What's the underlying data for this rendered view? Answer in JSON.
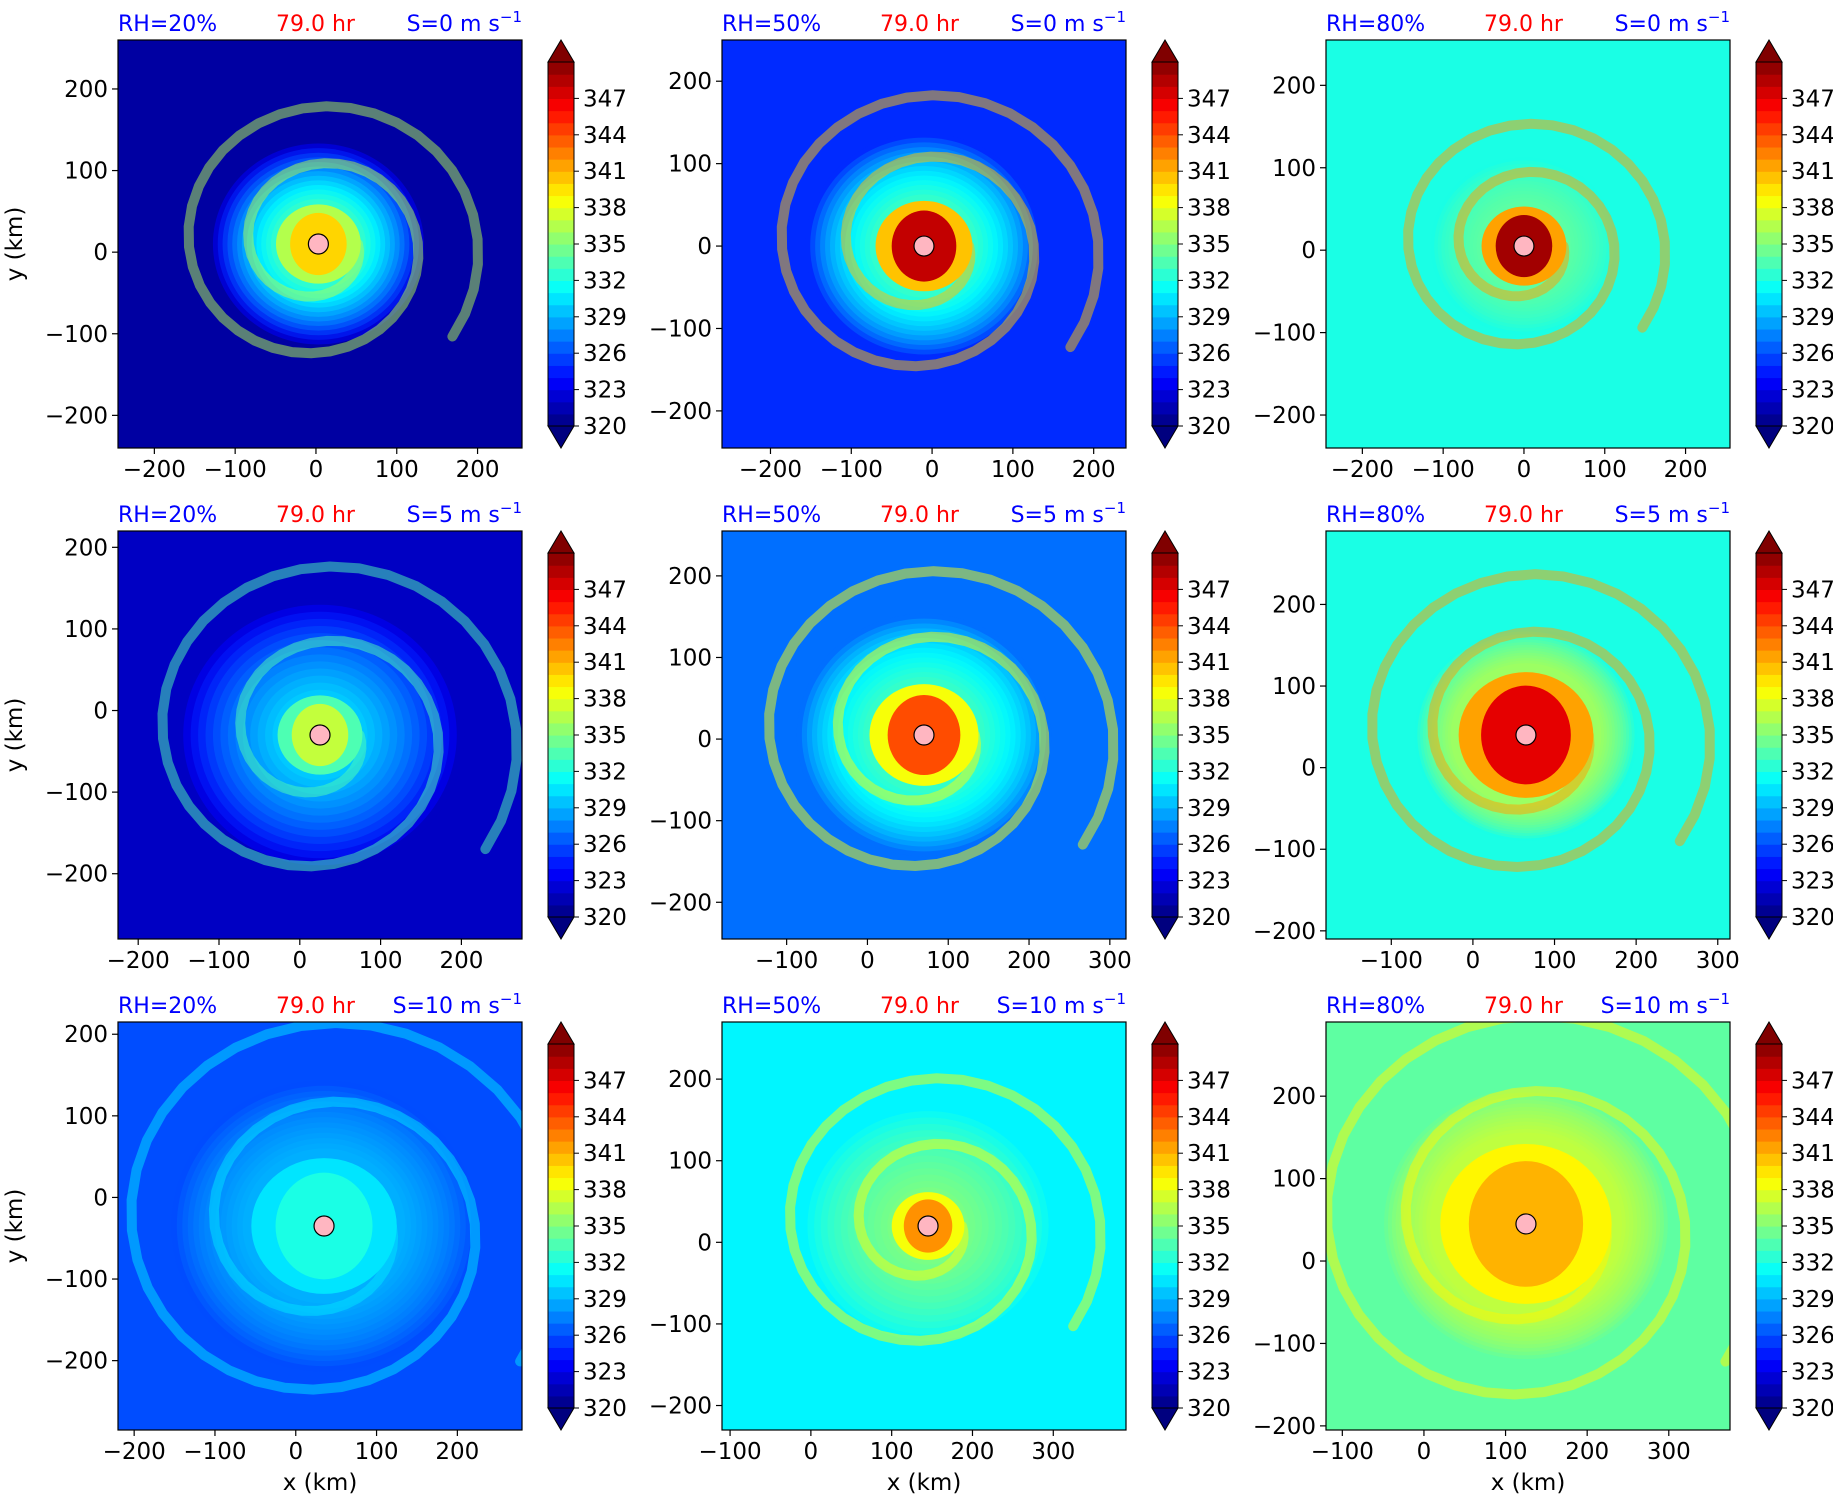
{
  "figure": {
    "colorbar": {
      "tick_labels": [
        "347",
        "344",
        "341",
        "338",
        "335",
        "332",
        "329",
        "326",
        "323",
        "320"
      ],
      "tick_values": [
        347,
        344,
        341,
        338,
        335,
        332,
        329,
        326,
        323,
        320
      ],
      "range": [
        320,
        350
      ],
      "extend": "both",
      "colormap": "jet"
    },
    "time_label": "79.0 hr",
    "time_color": "#ff0000",
    "label_color": "#0000ff"
  },
  "chart_data": [
    {
      "type": "heatmap",
      "rh_label": "RH=20%",
      "time_label": "79.0 hr",
      "shear_label": "S=0 m s",
      "shear_exp": "−1",
      "ylabel": "y (km)",
      "xlabel": "",
      "xticks": [
        -200,
        -100,
        0,
        100,
        200
      ],
      "xtick_labels": [
        "−200",
        "−100",
        "0",
        "100",
        "200"
      ],
      "yticks": [
        200,
        100,
        0,
        -100,
        -200
      ],
      "ytick_labels": [
        "200",
        "100",
        "0",
        "−100",
        "−200"
      ],
      "xlim": [
        -245,
        255
      ],
      "ylim": [
        -240,
        260
      ],
      "center": [
        3,
        10
      ],
      "bg_value": 321,
      "core_value": 340,
      "core_radius_km": 35,
      "ring_value": 333,
      "ring_radius_km": 130
    },
    {
      "type": "heatmap",
      "rh_label": "RH=50%",
      "time_label": "79.0 hr",
      "shear_label": "S=0 m s",
      "shear_exp": "−1",
      "ylabel": "",
      "xlabel": "",
      "xticks": [
        -200,
        -100,
        0,
        100,
        200
      ],
      "xtick_labels": [
        "−200",
        "−100",
        "0",
        "100",
        "200"
      ],
      "yticks": [
        200,
        100,
        0,
        -100,
        -200
      ],
      "ytick_labels": [
        "200",
        "100",
        "0",
        "−100",
        "−200"
      ],
      "xlim": [
        -260,
        240
      ],
      "ylim": [
        -245,
        250
      ],
      "center": [
        -10,
        0
      ],
      "bg_value": 325,
      "core_value": 348,
      "core_radius_km": 40,
      "ring_value": 333,
      "ring_radius_km": 140
    },
    {
      "type": "heatmap",
      "rh_label": "RH=80%",
      "time_label": "79.0 hr",
      "shear_label": "S=0 m s",
      "shear_exp": "−1",
      "ylabel": "",
      "xlabel": "",
      "xticks": [
        -200,
        -100,
        0,
        100,
        200
      ],
      "xtick_labels": [
        "−200",
        "−100",
        "0",
        "100",
        "200"
      ],
      "yticks": [
        200,
        100,
        0,
        -100,
        -200
      ],
      "ytick_labels": [
        "200",
        "100",
        "0",
        "−100",
        "−200"
      ],
      "xlim": [
        -245,
        255
      ],
      "ylim": [
        -240,
        255
      ],
      "center": [
        0,
        5
      ],
      "bg_value": 332,
      "core_value": 349,
      "core_radius_km": 35,
      "ring_value": 334,
      "ring_radius_km": 110
    },
    {
      "type": "heatmap",
      "rh_label": "RH=20%",
      "time_label": "79.0 hr",
      "shear_label": "S=5 m s",
      "shear_exp": "−1",
      "ylabel": "y (km)",
      "xlabel": "",
      "xticks": [
        -200,
        -100,
        0,
        100,
        200
      ],
      "xtick_labels": [
        "−200",
        "−100",
        "0",
        "100",
        "200"
      ],
      "yticks": [
        200,
        100,
        0,
        -100,
        -200
      ],
      "ytick_labels": [
        "200",
        "100",
        "0",
        "−100",
        "−200"
      ],
      "xlim": [
        -225,
        275
      ],
      "ylim": [
        -280,
        220
      ],
      "center": [
        25,
        -30
      ],
      "bg_value": 322,
      "core_value": 337,
      "core_radius_km": 35,
      "ring_value": 330,
      "ring_radius_km": 170
    },
    {
      "type": "heatmap",
      "rh_label": "RH=50%",
      "time_label": "79.0 hr",
      "shear_label": "S=5 m s",
      "shear_exp": "−1",
      "ylabel": "",
      "xlabel": "",
      "xticks": [
        -100,
        0,
        100,
        200,
        300
      ],
      "xtick_labels": [
        "−100",
        "0",
        "100",
        "200",
        "300"
      ],
      "yticks": [
        200,
        100,
        0,
        -100,
        -200
      ],
      "ytick_labels": [
        "200",
        "100",
        "0",
        "−100",
        "−200"
      ],
      "xlim": [
        -180,
        320
      ],
      "ylim": [
        -245,
        255
      ],
      "center": [
        70,
        5
      ],
      "bg_value": 327,
      "core_value": 344,
      "core_radius_km": 45,
      "ring_value": 333,
      "ring_radius_km": 150
    },
    {
      "type": "heatmap",
      "rh_label": "RH=80%",
      "time_label": "79.0 hr",
      "shear_label": "S=5 m s",
      "shear_exp": "−1",
      "ylabel": "",
      "xlabel": "",
      "xticks": [
        -100,
        0,
        100,
        200,
        300
      ],
      "xtick_labels": [
        "−100",
        "0",
        "100",
        "200",
        "300"
      ],
      "yticks": [
        200,
        100,
        0,
        -100,
        -200
      ],
      "ytick_labels": [
        "200",
        "100",
        "0",
        "−100",
        "−200"
      ],
      "xlim": [
        -180,
        315
      ],
      "ylim": [
        -210,
        290
      ],
      "center": [
        65,
        40
      ],
      "bg_value": 332,
      "core_value": 347,
      "core_radius_km": 55,
      "ring_value": 336,
      "ring_radius_km": 130
    },
    {
      "type": "heatmap",
      "rh_label": "RH=20%",
      "time_label": "79.0 hr",
      "shear_label": "S=10 m s",
      "shear_exp": "−1",
      "ylabel": "y (km)",
      "xlabel": "x (km)",
      "xticks": [
        -200,
        -100,
        0,
        100,
        200
      ],
      "xtick_labels": [
        "−200",
        "−100",
        "0",
        "100",
        "200"
      ],
      "yticks": [
        200,
        100,
        0,
        -100,
        -200
      ],
      "ytick_labels": [
        "200",
        "100",
        "0",
        "−100",
        "−200"
      ],
      "xlim": [
        -220,
        280
      ],
      "ylim": [
        -285,
        215
      ],
      "center": [
        35,
        -35
      ],
      "bg_value": 326,
      "core_value": 332,
      "core_radius_km": 60,
      "ring_value": 329,
      "ring_radius_km": 180
    },
    {
      "type": "heatmap",
      "rh_label": "RH=50%",
      "time_label": "79.0 hr",
      "shear_label": "S=10 m s",
      "shear_exp": "−1",
      "ylabel": "",
      "xlabel": "x (km)",
      "xticks": [
        -100,
        0,
        100,
        200,
        300
      ],
      "xtick_labels": [
        "−100",
        "0",
        "100",
        "200",
        "300"
      ],
      "yticks": [
        200,
        100,
        0,
        -100,
        -200
      ],
      "ytick_labels": [
        "200",
        "100",
        "0",
        "−100",
        "−200"
      ],
      "xlim": [
        -110,
        390
      ],
      "ylim": [
        -230,
        270
      ],
      "center": [
        145,
        20
      ],
      "bg_value": 331,
      "core_value": 342,
      "core_radius_km": 30,
      "ring_value": 335,
      "ring_radius_km": 150
    },
    {
      "type": "heatmap",
      "rh_label": "RH=80%",
      "time_label": "79.0 hr",
      "shear_label": "S=10 m s",
      "shear_exp": "−1",
      "ylabel": "",
      "xlabel": "x (km)",
      "xticks": [
        -100,
        0,
        100,
        200,
        300
      ],
      "xtick_labels": [
        "−100",
        "0",
        "100",
        "200",
        "300"
      ],
      "yticks": [
        200,
        100,
        0,
        -100,
        -200
      ],
      "ytick_labels": [
        "200",
        "100",
        "0",
        "−100",
        "−200"
      ],
      "xlim": [
        -120,
        375
      ],
      "ylim": [
        -205,
        290
      ],
      "center": [
        125,
        45
      ],
      "bg_value": 334,
      "core_value": 341,
      "core_radius_km": 70,
      "ring_value": 337,
      "ring_radius_km": 170
    }
  ]
}
